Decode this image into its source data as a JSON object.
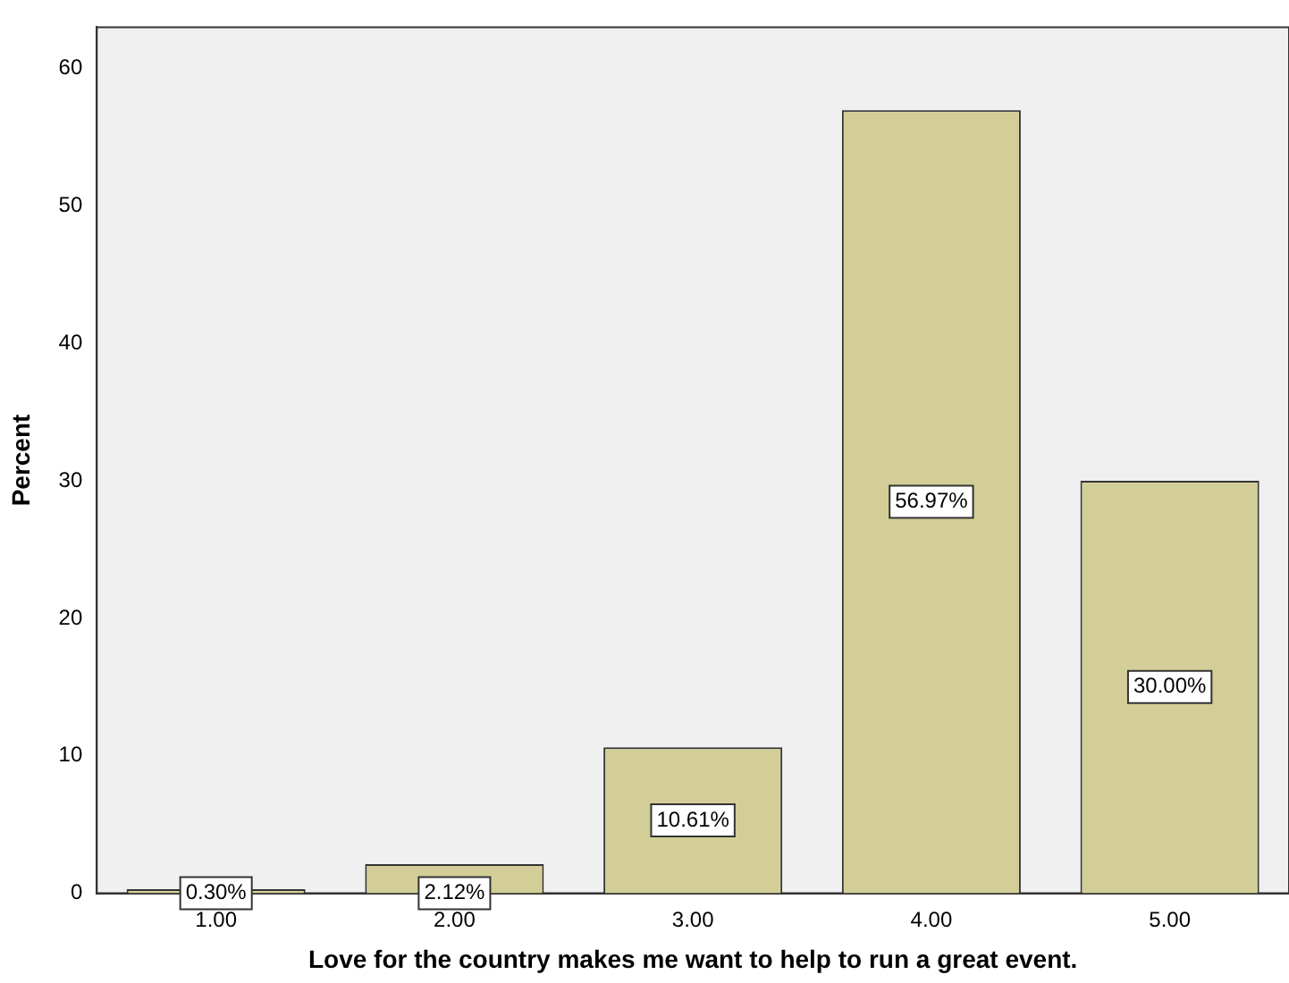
{
  "chart_data": {
    "type": "bar",
    "xlabel": "Love for the country makes me want to help to run a great event.",
    "ylabel": "Percent",
    "categories": [
      "1.00",
      "2.00",
      "3.00",
      "4.00",
      "5.00"
    ],
    "values": [
      0.3,
      2.12,
      10.61,
      56.97,
      30
    ],
    "value_labels": [
      "0.30%",
      "2.12%",
      "10.61%",
      "56.97%",
      "30.00%"
    ],
    "color": "#d3ce97",
    "ylim": [
      0,
      63
    ],
    "yticks": [
      0,
      10,
      20,
      30,
      40,
      50,
      60
    ],
    "grid": false,
    "legend": false
  }
}
